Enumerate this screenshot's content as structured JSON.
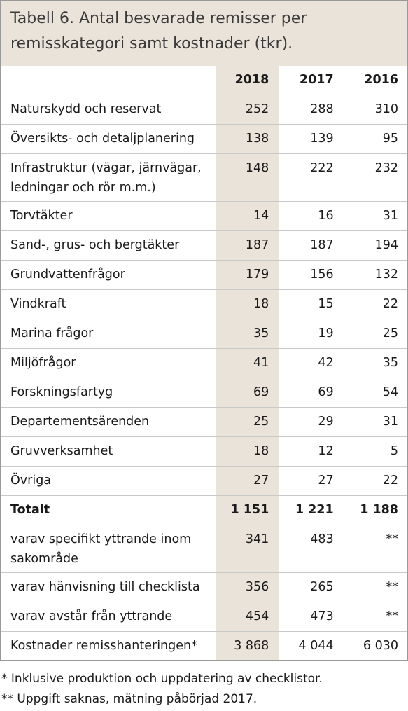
{
  "title": "Tabell 6. Antal besvarade remisser per remisskategori samt kostnader (tkr).",
  "columns": [
    "2018",
    "2017",
    "2016"
  ],
  "rows": [
    {
      "label": "Naturskydd och reservat",
      "v": [
        "252",
        "288",
        "310"
      ]
    },
    {
      "label": "Översikts- och detaljplanering",
      "v": [
        "138",
        "139",
        "95"
      ]
    },
    {
      "label": "Infrastruktur (vägar, järnvägar, ledningar och rör m.m.)",
      "v": [
        "148",
        "222",
        "232"
      ]
    },
    {
      "label": "Torvtäkter",
      "v": [
        "14",
        "16",
        "31"
      ]
    },
    {
      "label": "Sand-, grus- och bergtäkter",
      "v": [
        "187",
        "187",
        "194"
      ]
    },
    {
      "label": "Grundvattenfrågor",
      "v": [
        "179",
        "156",
        "132"
      ]
    },
    {
      "label": "Vindkraft",
      "v": [
        "18",
        "15",
        "22"
      ]
    },
    {
      "label": "Marina frågor",
      "v": [
        "35",
        "19",
        "25"
      ]
    },
    {
      "label": "Miljöfrågor",
      "v": [
        "41",
        "42",
        "35"
      ]
    },
    {
      "label": "Forskningsfartyg",
      "v": [
        "69",
        "69",
        "54"
      ]
    },
    {
      "label": "Departementsärenden",
      "v": [
        "25",
        "29",
        "31"
      ]
    },
    {
      "label": "Gruvverksamhet",
      "v": [
        "18",
        "12",
        "5"
      ]
    },
    {
      "label": "Övriga",
      "v": [
        "27",
        "27",
        "22"
      ]
    },
    {
      "label": "Totalt",
      "v": [
        "1 151",
        "1 221",
        "1 188"
      ]
    },
    {
      "label": "varav specifikt yttrande inom sakområde",
      "v": [
        "341",
        "483",
        "**"
      ]
    },
    {
      "label": "varav hänvisning till checklista",
      "v": [
        "356",
        "265",
        "**"
      ]
    },
    {
      "label": "varav avstår från yttrande",
      "v": [
        "454",
        "473",
        "**"
      ]
    },
    {
      "label": "Kostnader remisshanteringen*",
      "v": [
        "3 868",
        "4 044",
        "6 030"
      ]
    }
  ],
  "footnotes": [
    "* Inklusive produktion och uppdatering av checklistor.",
    "** Uppgift saknas, mätning påbörjad 2017."
  ]
}
